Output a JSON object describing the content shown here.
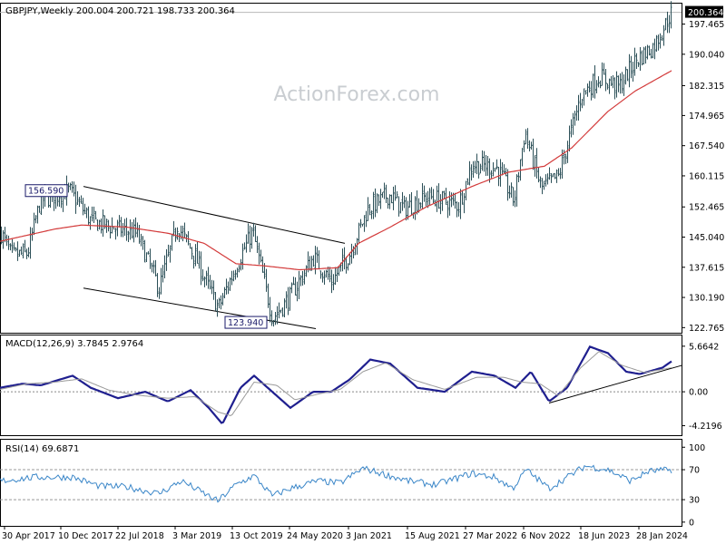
{
  "watermark": "ActionForex.com",
  "colors": {
    "price_bars": "#2b4f57",
    "ma": "#d33a3a",
    "macd": "#1f1f8f",
    "signal": "#9a9a9a",
    "rsi": "#3a86c8",
    "label_box": "#1a1a6a"
  },
  "chart_data": [
    {
      "type": "ohlc",
      "title": "GBPJPY,Weekly  200.004 200.721 198.733 200.364",
      "ylim": [
        121.5,
        202.5
      ],
      "y_ticks": [
        "197.465",
        "190.040",
        "182.315",
        "174.965",
        "167.540",
        "160.115",
        "152.465",
        "145.040",
        "137.615",
        "130.190",
        "122.765"
      ],
      "y_tick_values": [
        197.465,
        190.04,
        182.315,
        174.965,
        167.54,
        160.115,
        152.465,
        145.04,
        137.615,
        130.19,
        122.765
      ],
      "last_price_label": "200.364",
      "last_price": 200.364,
      "annotations": [
        {
          "text": "156.590",
          "value": 156.59,
          "anchor_index": 76
        },
        {
          "text": "123.940",
          "value": 123.94,
          "anchor_index": 287
        }
      ],
      "trendlines": [
        {
          "from": [
            92,
            157.5
          ],
          "to": [
            380,
            143.5
          ]
        },
        {
          "from": [
            92,
            132.5
          ],
          "to": [
            348,
            122.5
          ]
        }
      ],
      "anchors": [
        [
          0,
          146.5
        ],
        [
          12,
          140.5
        ],
        [
          30,
          141.0
        ],
        [
          44,
          154.0
        ],
        [
          76,
          156.5
        ],
        [
          100,
          149.0
        ],
        [
          130,
          147.0
        ],
        [
          150,
          146.0
        ],
        [
          175,
          132.5
        ],
        [
          195,
          148.0
        ],
        [
          215,
          140.0
        ],
        [
          240,
          127.5
        ],
        [
          260,
          138.0
        ],
        [
          278,
          146.5
        ],
        [
          300,
          125.0
        ],
        [
          318,
          130.0
        ],
        [
          345,
          140.0
        ],
        [
          365,
          134.0
        ],
        [
          385,
          141.0
        ],
        [
          405,
          152.0
        ],
        [
          428,
          155.5
        ],
        [
          445,
          152.0
        ],
        [
          470,
          155.0
        ],
        [
          505,
          153.0
        ],
        [
          520,
          163.0
        ],
        [
          548,
          162.0
        ],
        [
          566,
          154.0
        ],
        [
          578,
          171.0
        ],
        [
          596,
          157.0
        ],
        [
          615,
          160.0
        ],
        [
          640,
          180.0
        ],
        [
          660,
          184.5
        ],
        [
          682,
          182.0
        ],
        [
          700,
          188.5
        ],
        [
          720,
          192.0
        ],
        [
          740,
          200.5
        ]
      ],
      "ma_anchors": [
        [
          0,
          144.0
        ],
        [
          60,
          147.0
        ],
        [
          90,
          148.0
        ],
        [
          140,
          147.5
        ],
        [
          185,
          146.0
        ],
        [
          225,
          143.5
        ],
        [
          260,
          138.5
        ],
        [
          290,
          138.0
        ],
        [
          330,
          137.0
        ],
        [
          372,
          137.5
        ],
        [
          395,
          143.5
        ],
        [
          430,
          147.5
        ],
        [
          470,
          152.5
        ],
        [
          520,
          157.5
        ],
        [
          560,
          161.0
        ],
        [
          600,
          162.5
        ],
        [
          630,
          167.0
        ],
        [
          670,
          176.0
        ],
        [
          700,
          181.0
        ],
        [
          740,
          186.0
        ]
      ]
    },
    {
      "type": "line",
      "title": "MACD(12,26,9) 3.7845 2.9764",
      "ylim": [
        -5.4,
        7.0
      ],
      "y_ticks": [
        "5.6642",
        "0.00",
        "-4.2196"
      ],
      "y_tick_values": [
        5.6642,
        0,
        -4.2196
      ],
      "series": [
        {
          "role": "macd",
          "anchors": [
            [
              0,
              0.5
            ],
            [
              25,
              1.0
            ],
            [
              45,
              0.8
            ],
            [
              80,
              2.0
            ],
            [
              100,
              0.5
            ],
            [
              130,
              -0.8
            ],
            [
              160,
              0.0
            ],
            [
              185,
              -1.2
            ],
            [
              210,
              0.2
            ],
            [
              230,
              -2.0
            ],
            [
              245,
              -4.0
            ],
            [
              265,
              0.5
            ],
            [
              280,
              2.0
            ],
            [
              300,
              0.0
            ],
            [
              320,
              -2.0
            ],
            [
              345,
              0.0
            ],
            [
              365,
              0.0
            ],
            [
              385,
              1.5
            ],
            [
              408,
              4.0
            ],
            [
              430,
              3.5
            ],
            [
              460,
              0.5
            ],
            [
              490,
              0.0
            ],
            [
              520,
              2.5
            ],
            [
              545,
              2.0
            ],
            [
              568,
              0.5
            ],
            [
              585,
              2.5
            ],
            [
              605,
              -1.2
            ],
            [
              625,
              0.5
            ],
            [
              650,
              5.6
            ],
            [
              670,
              4.8
            ],
            [
              690,
              2.5
            ],
            [
              705,
              2.2
            ],
            [
              730,
              3.0
            ],
            [
              740,
              3.78
            ]
          ]
        },
        {
          "role": "signal",
          "anchors": [
            [
              0,
              0.3
            ],
            [
              30,
              1.0
            ],
            [
              60,
              1.2
            ],
            [
              90,
              1.6
            ],
            [
              120,
              0.2
            ],
            [
              150,
              -0.4
            ],
            [
              185,
              -0.8
            ],
            [
              215,
              -0.6
            ],
            [
              240,
              -2.5
            ],
            [
              255,
              -3.0
            ],
            [
              280,
              1.2
            ],
            [
              305,
              0.8
            ],
            [
              325,
              -1.0
            ],
            [
              350,
              -0.3
            ],
            [
              375,
              0.3
            ],
            [
              400,
              2.5
            ],
            [
              425,
              3.6
            ],
            [
              455,
              1.5
            ],
            [
              490,
              0.3
            ],
            [
              525,
              1.8
            ],
            [
              555,
              1.8
            ],
            [
              575,
              1.2
            ],
            [
              595,
              1.0
            ],
            [
              615,
              -0.5
            ],
            [
              640,
              3.0
            ],
            [
              660,
              5.0
            ],
            [
              685,
              3.3
            ],
            [
              710,
              2.4
            ],
            [
              740,
              2.98
            ]
          ]
        }
      ],
      "trendline": {
        "from": [
          605,
          -1.4
        ],
        "to": [
          752,
          3.3
        ]
      }
    },
    {
      "type": "line",
      "title": "RSI(14) 69.6871",
      "ylim": [
        -5,
        110
      ],
      "y_ticks": [
        "100",
        "70",
        "30",
        "0"
      ],
      "y_tick_values": [
        100,
        70,
        30,
        0
      ],
      "dashed_levels": [
        70,
        30
      ],
      "series": [
        {
          "role": "rsi",
          "anchors": [
            [
              0,
              55
            ],
            [
              40,
              60
            ],
            [
              80,
              60
            ],
            [
              110,
              48
            ],
            [
              140,
              47
            ],
            [
              175,
              38
            ],
            [
              200,
              55
            ],
            [
              240,
              28
            ],
            [
              260,
              50
            ],
            [
              280,
              62
            ],
            [
              300,
              35
            ],
            [
              320,
              45
            ],
            [
              350,
              55
            ],
            [
              375,
              52
            ],
            [
              400,
              72
            ],
            [
              420,
              65
            ],
            [
              450,
              55
            ],
            [
              480,
              50
            ],
            [
              520,
              65
            ],
            [
              545,
              60
            ],
            [
              565,
              45
            ],
            [
              580,
              70
            ],
            [
              605,
              45
            ],
            [
              625,
              60
            ],
            [
              645,
              75
            ],
            [
              670,
              70
            ],
            [
              695,
              55
            ],
            [
              715,
              68
            ],
            [
              740,
              69.7
            ]
          ]
        }
      ]
    }
  ],
  "x_axis": {
    "labels": [
      "30 Apr 2017",
      "10 Dec 2017",
      "22 Jul 2018",
      "3 Mar 2019",
      "13 Oct 2019",
      "24 May 2020",
      "3 Jan 2021",
      "15 Aug 2021",
      "27 Mar 2022",
      "6 Nov 2022",
      "18 Jun 2023",
      "28 Jan 2024"
    ]
  }
}
